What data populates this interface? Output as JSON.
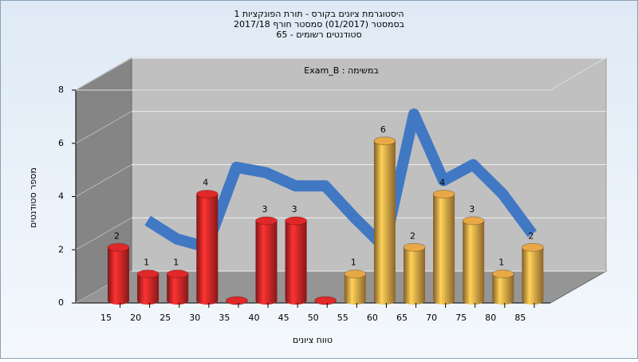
{
  "chart_data": {
    "type": "bar",
    "title_lines": [
      "היסטוגרמת ציונים בקורס - תורת הפונקציות 1",
      "בסמסטר (01/2017) סמסטר חורף 2017/18",
      "סטודנטים רשומים - 65"
    ],
    "annotation": "במשימה : Exam_B",
    "xlabel": "טווח ציונים",
    "ylabel": "מספר סטודנטים",
    "categories": [
      "15",
      "20",
      "25",
      "30",
      "35",
      "40",
      "45",
      "50",
      "55",
      "60",
      "65",
      "70",
      "75",
      "80",
      "85"
    ],
    "values": [
      2,
      1,
      1,
      4,
      0,
      3,
      3,
      0,
      1,
      6,
      2,
      4,
      3,
      1,
      2
    ],
    "colors": [
      "#e02828",
      "#e02828",
      "#e02828",
      "#e02828",
      "#e02828",
      "#e02828",
      "#e02828",
      "#e02828",
      "#e8a846",
      "#e8a846",
      "#e8a846",
      "#e8a846",
      "#e8a846",
      "#e8a846",
      "#e8a846"
    ],
    "trend": {
      "color": "#3a74c4",
      "values": [
        null,
        2.5,
        1.8,
        1.5,
        4.5,
        4.3,
        3.8,
        3.8,
        2.6,
        1.5,
        6.5,
        4,
        4.6,
        3.5,
        2
      ]
    },
    "ylim": [
      0,
      8
    ],
    "yticks": [
      0,
      2,
      4,
      6,
      8
    ],
    "grid": true
  }
}
